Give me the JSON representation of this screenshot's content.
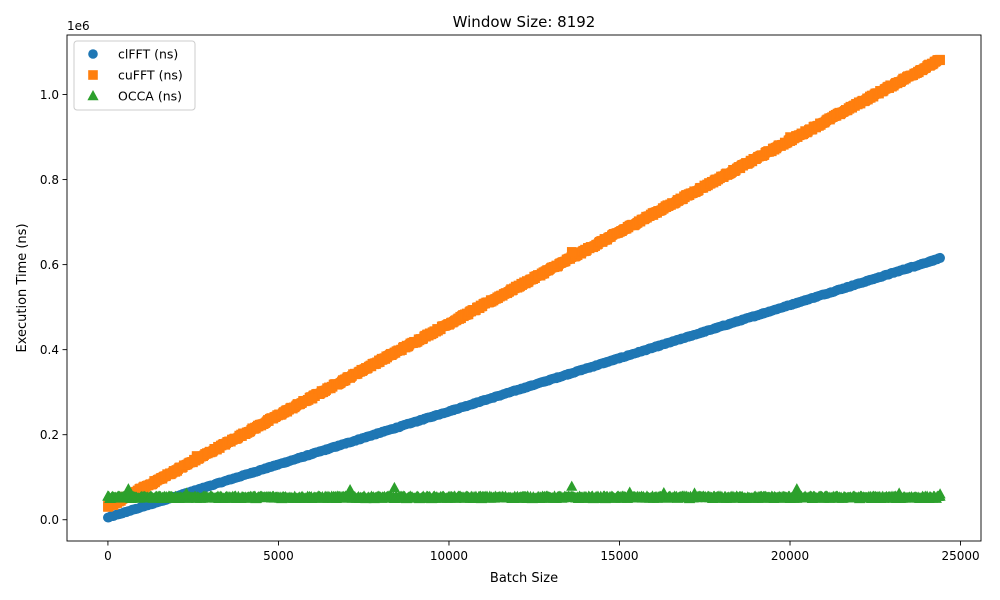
{
  "chart_data": {
    "type": "scatter",
    "title": "Window Size: 8192",
    "xlabel": "Batch Size",
    "ylabel": "Execution Time (ns)",
    "y_offset_label": "1e6",
    "xlim": [
      -1200,
      25600
    ],
    "ylim": [
      -50000,
      1140000
    ],
    "x_ticks": [
      0,
      5000,
      10000,
      15000,
      20000,
      25000
    ],
    "x_tick_labels": [
      "0",
      "5000",
      "10000",
      "15000",
      "20000",
      "25000"
    ],
    "y_ticks": [
      0,
      200000,
      400000,
      600000,
      800000,
      1000000
    ],
    "y_tick_labels": [
      "0.0",
      "0.2",
      "0.4",
      "0.6",
      "0.8",
      "1.0"
    ],
    "grid": false,
    "legend_position": "top-left",
    "series": [
      {
        "name": "clFFT (ns)",
        "marker": "circle",
        "color": "#1f77b4",
        "trend": {
          "x_start": 0,
          "x_end": 24400,
          "y_start": 5000,
          "y_end": 615000
        },
        "points": [
          [
            0,
            5000
          ],
          [
            4000,
            105000
          ],
          [
            8000,
            205000
          ],
          [
            12000,
            305000
          ],
          [
            16000,
            405000
          ],
          [
            20000,
            505000
          ],
          [
            24400,
            615000
          ]
        ]
      },
      {
        "name": "cuFFT (ns)",
        "marker": "square",
        "color": "#ff7f0e",
        "trend": {
          "x_start": 0,
          "x_end": 24400,
          "y_start": 30000,
          "y_end": 1082000
        },
        "points": [
          [
            0,
            30000
          ],
          [
            2600,
            150000
          ],
          [
            6000,
            285000
          ],
          [
            13600,
            630000
          ],
          [
            20000,
            900000
          ],
          [
            24400,
            1082000
          ]
        ]
      },
      {
        "name": "OCCA (ns)",
        "marker": "triangle",
        "color": "#2ca02c",
        "baseline": 52000,
        "points": [
          [
            0,
            55000
          ],
          [
            600,
            72000
          ],
          [
            2300,
            62000
          ],
          [
            7100,
            70000
          ],
          [
            8400,
            75000
          ],
          [
            13600,
            78000
          ],
          [
            15300,
            64000
          ],
          [
            16300,
            63000
          ],
          [
            17200,
            62000
          ],
          [
            20200,
            72000
          ],
          [
            23200,
            62000
          ],
          [
            24400,
            60000
          ]
        ]
      }
    ]
  }
}
